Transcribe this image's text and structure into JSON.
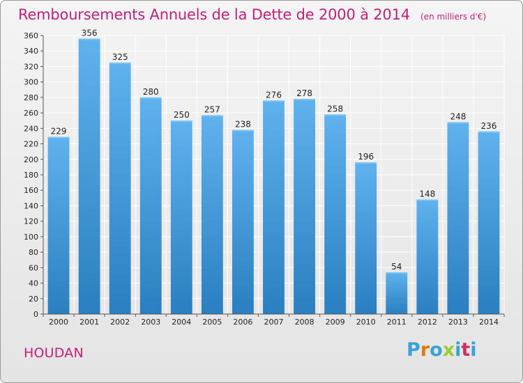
{
  "title": "Remboursements Annuels de la Dette de 2000 à 2014",
  "unit_note": "(en milliers d'€)",
  "commune": "HOUDAN",
  "logo": {
    "text": "Proxiti",
    "letter_colors": [
      "#3aa0d8",
      "#e07a10",
      "#3aa0d8",
      "#9acd32",
      "#3aa0d8",
      "#d03060",
      "#3aa0d8"
    ]
  },
  "colors": {
    "title": "#c0207a",
    "bar_light": "#5fb2ee",
    "bar_dark": "#2a7fc0",
    "grid": "#ffffff",
    "axis": "#555555"
  },
  "chart_data": {
    "type": "bar",
    "categories": [
      "2000",
      "2001",
      "2002",
      "2003",
      "2004",
      "2005",
      "2006",
      "2007",
      "2008",
      "2009",
      "2010",
      "2011",
      "2012",
      "2013",
      "2014"
    ],
    "values": [
      229,
      356,
      325,
      280,
      250,
      257,
      238,
      276,
      278,
      258,
      196,
      54,
      148,
      248,
      236
    ],
    "data_labels": [
      "229",
      "356",
      "325",
      "280",
      "250",
      "257",
      "238",
      "276",
      "278",
      "258",
      "196",
      "54",
      "148",
      "248",
      "236"
    ],
    "ylim": [
      0,
      360
    ],
    "yticks": [
      0,
      20,
      40,
      60,
      80,
      100,
      120,
      140,
      160,
      180,
      200,
      220,
      240,
      260,
      280,
      300,
      320,
      340,
      360
    ],
    "ytick_labels": [
      "0",
      "20",
      "40",
      "60",
      "80",
      "100",
      "120",
      "140",
      "160",
      "180",
      "200",
      "220",
      "240",
      "260",
      "280",
      "300",
      "320",
      "340",
      "360"
    ],
    "grid": true,
    "legend": "none"
  }
}
